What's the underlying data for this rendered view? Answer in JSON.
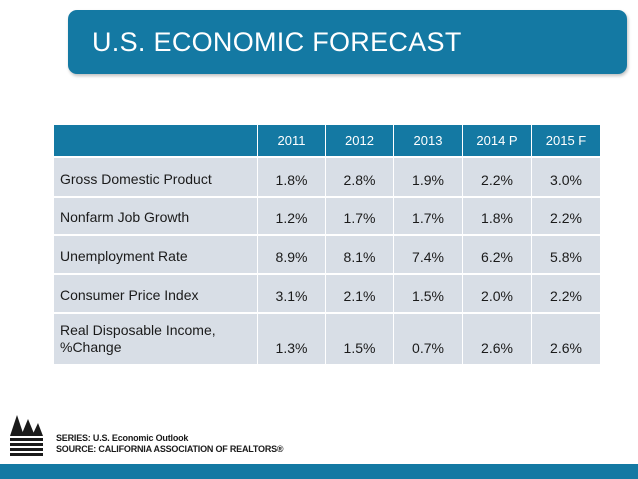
{
  "title": "U.S. ECONOMIC FORECAST",
  "table": {
    "columns": [
      "2011",
      "2012",
      "2013",
      "2014 P",
      "2015 F"
    ],
    "rows": [
      {
        "label": "Gross Domestic Product",
        "values": [
          "1.8%",
          "2.8%",
          "1.9%",
          "2.2%",
          "3.0%"
        ]
      },
      {
        "label": "Nonfarm Job Growth",
        "values": [
          "1.2%",
          "1.7%",
          "1.7%",
          "1.8%",
          "2.2%"
        ]
      },
      {
        "label": "Unemployment Rate",
        "values": [
          "8.9%",
          "8.1%",
          "7.4%",
          "6.2%",
          "5.8%"
        ]
      },
      {
        "label": "Consumer Price Index",
        "values": [
          "3.1%",
          "2.1%",
          "1.5%",
          "2.0%",
          "2.2%"
        ]
      },
      {
        "label_line1": "Real Disposable Income,",
        "label_line2": "%Change",
        "values": [
          "1.3%",
          "1.5%",
          "0.7%",
          "2.6%",
          "2.6%"
        ]
      }
    ]
  },
  "footer": {
    "series": "SERIES: U.S. Economic Outlook",
    "source": "SOURCE:  CALIFORNIA ASSOCIATION OF REALTORS®"
  },
  "colors": {
    "accent": "#1479a3",
    "row_fill": "#d8dee6"
  },
  "logo_icon": "car-logo-icon"
}
